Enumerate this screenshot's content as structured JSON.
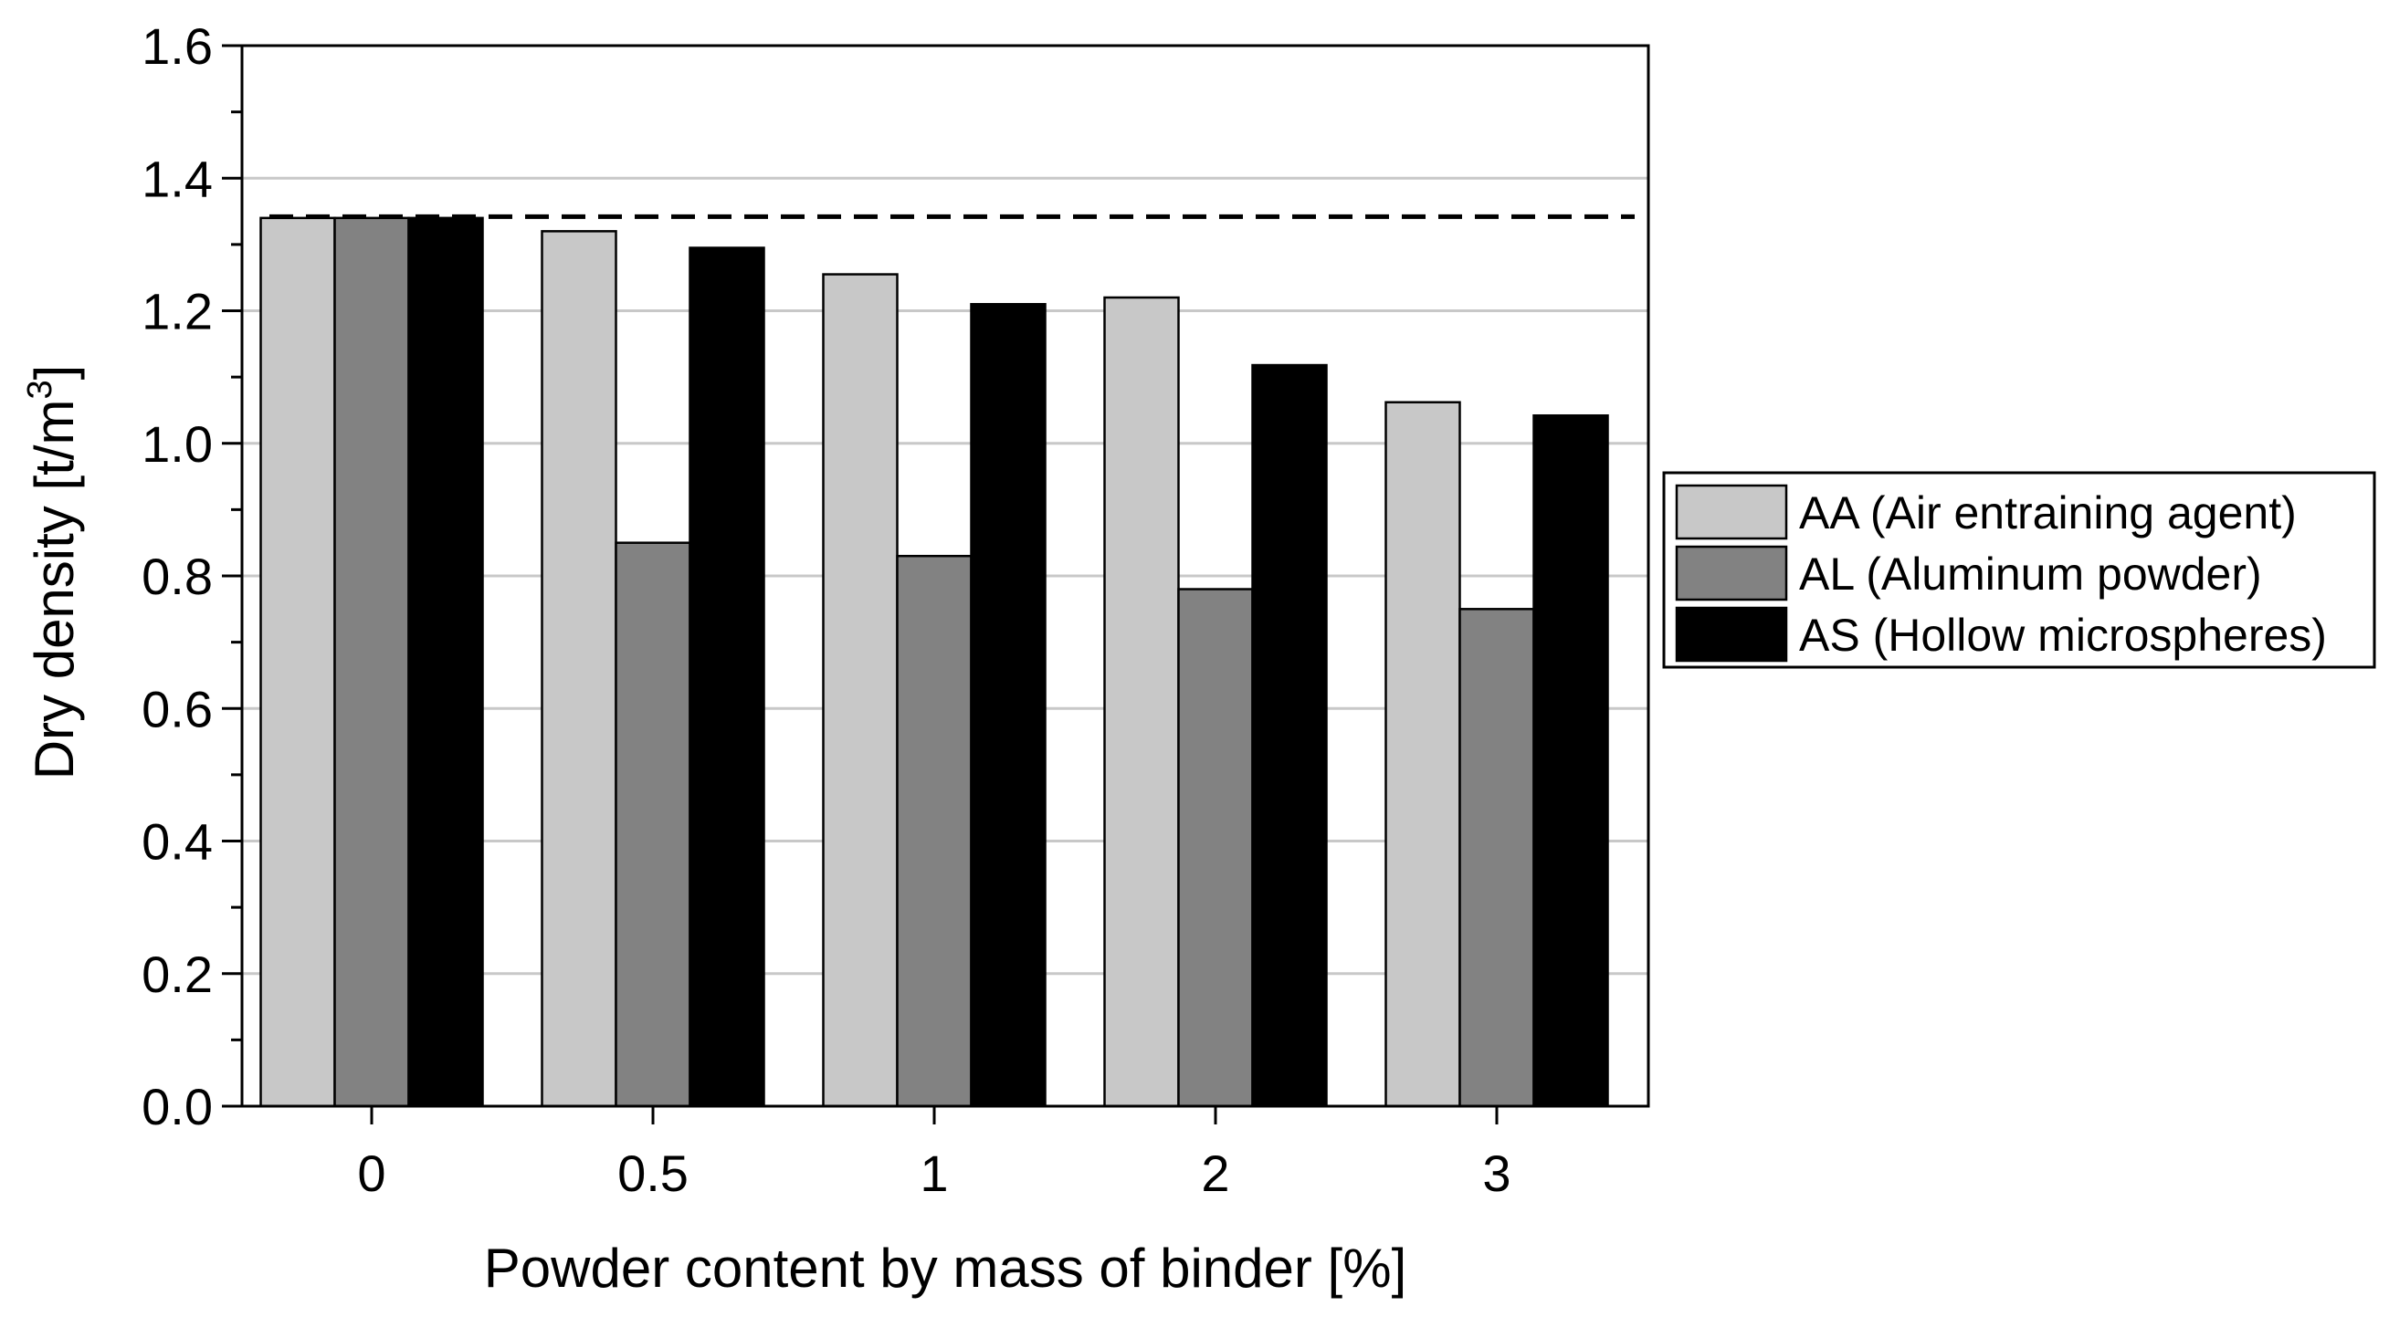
{
  "chart_data": {
    "type": "bar",
    "xlabel": "Powder content by mass of binder [%]",
    "ylabel": "Dry density [t/m",
    "ylabel_superscript": "3",
    "ylabel_suffix": "]",
    "categories": [
      "0",
      "0.5",
      "1",
      "2",
      "3"
    ],
    "series": [
      {
        "name": "AA (Air entraining agent)",
        "values": [
          1.34,
          1.32,
          1.255,
          1.22,
          1.062
        ],
        "color": "#c8c8c8"
      },
      {
        "name": "AL (Aluminum powder)",
        "values": [
          1.34,
          0.85,
          0.83,
          0.78,
          0.75
        ],
        "color": "#828282"
      },
      {
        "name": "AS (Hollow microspheres)",
        "values": [
          1.34,
          1.295,
          1.21,
          1.118,
          1.042
        ],
        "color": "#000000"
      }
    ],
    "ylim": [
      0.0,
      1.6
    ],
    "yticks": [
      "0.0",
      "0.2",
      "0.4",
      "0.6",
      "0.8",
      "1.0",
      "1.2",
      "1.4",
      "1.6"
    ],
    "grid": "horizontal",
    "reference_line": {
      "value": 1.342,
      "style": "dashed"
    },
    "legend_position": "right"
  }
}
